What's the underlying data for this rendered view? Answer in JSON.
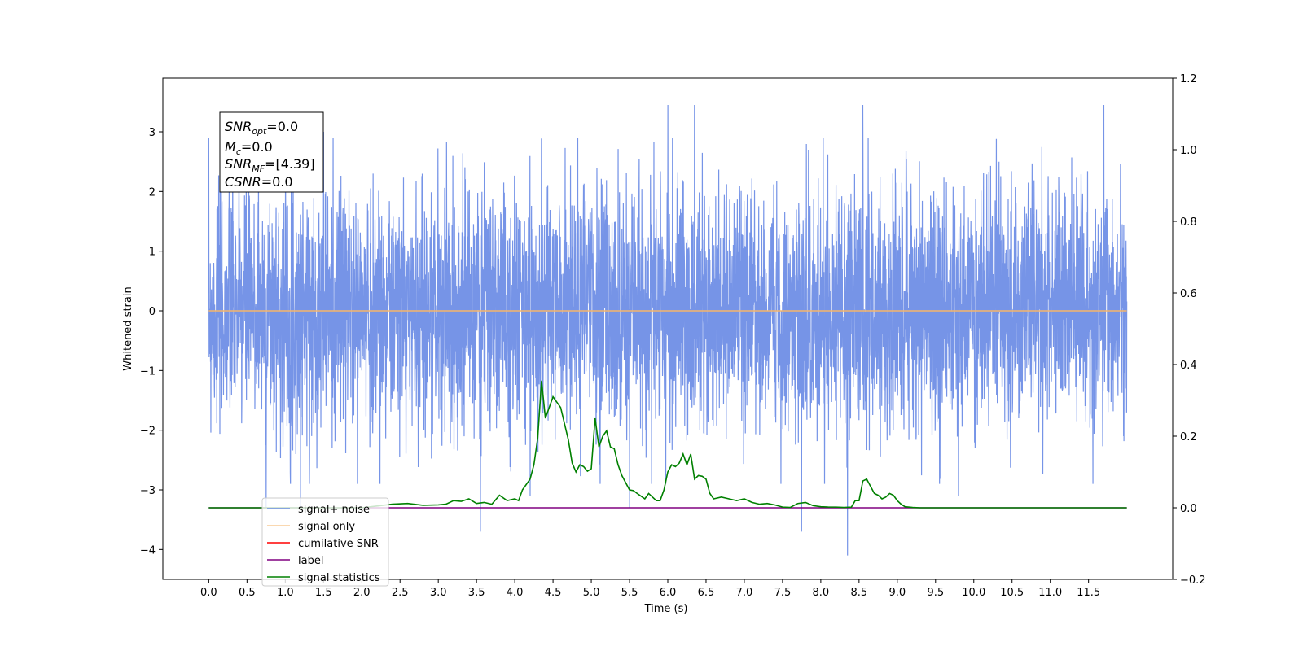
{
  "chart_data": {
    "type": "line",
    "title": "",
    "xlabel": "Time (s)",
    "ylabel": "Whitened strain",
    "xlim": [
      -0.6,
      12.6
    ],
    "ylim": [
      -4.5,
      3.9
    ],
    "y2lim": [
      -0.2,
      1.2
    ],
    "x_ticks": [
      "0.0",
      "0.5",
      "1.0",
      "1.5",
      "2.0",
      "2.5",
      "3.0",
      "3.5",
      "4.0",
      "4.5",
      "5.0",
      "5.5",
      "6.0",
      "6.5",
      "7.0",
      "7.5",
      "8.0",
      "8.5",
      "9.0",
      "9.5",
      "10.0",
      "10.5",
      "11.0",
      "11.5"
    ],
    "y_ticks": [
      "3",
      "2",
      "1",
      "0",
      "−1",
      "−2",
      "−3",
      "−4"
    ],
    "y2_ticks": [
      "1.2",
      "1.0",
      "0.8",
      "0.6",
      "0.4",
      "0.2",
      "0.0",
      "−0.2"
    ],
    "grid": false,
    "legend_position": "lower-left",
    "annotation": {
      "snr_opt": "=0.0",
      "mc": "=0.0",
      "snr_mf": "=[4.39]",
      "csnr": "=0.0"
    },
    "series": [
      {
        "name": "signal+ noise",
        "color": "#6f8ee6",
        "axis": "left",
        "note": "dense white noise between about -2.5 and 2.5 over 0–12 s",
        "x_range": [
          0,
          12
        ],
        "peaks": [
          [
            0.65,
            2.75
          ],
          [
            1.2,
            3.0
          ],
          [
            1.5,
            3.0
          ],
          [
            6.0,
            3.45
          ],
          [
            6.35,
            3.45
          ],
          [
            8.55,
            3.45
          ],
          [
            11.7,
            3.45
          ]
        ],
        "dips": [
          [
            0.75,
            -3.3
          ],
          [
            1.2,
            -3.3
          ],
          [
            3.55,
            -3.7
          ],
          [
            4.2,
            -3.1
          ],
          [
            5.5,
            -3.3
          ],
          [
            7.75,
            -3.7
          ],
          [
            8.35,
            -4.1
          ],
          [
            9.8,
            -3.1
          ]
        ]
      },
      {
        "name": "signal only",
        "color": "#f5b56a",
        "axis": "left",
        "x": [
          0,
          12
        ],
        "y": [
          0,
          0
        ]
      },
      {
        "name": "cumilative SNR",
        "color": "#ff0000",
        "axis": "right",
        "x": [],
        "y": []
      },
      {
        "name": "label",
        "color": "#800080",
        "axis": "right",
        "x": [
          0,
          12
        ],
        "y": [
          0,
          0
        ]
      },
      {
        "name": "signal statistics",
        "color": "#008000",
        "axis": "right",
        "x": [
          0,
          2.0,
          2.2,
          2.4,
          2.6,
          2.8,
          3.0,
          3.1,
          3.2,
          3.3,
          3.4,
          3.5,
          3.6,
          3.7,
          3.8,
          3.9,
          4.0,
          4.05,
          4.1,
          4.2,
          4.25,
          4.3,
          4.35,
          4.4,
          4.5,
          4.55,
          4.6,
          4.7,
          4.75,
          4.8,
          4.85,
          4.9,
          4.95,
          5.0,
          5.05,
          5.1,
          5.15,
          5.2,
          5.25,
          5.3,
          5.35,
          5.4,
          5.5,
          5.55,
          5.6,
          5.7,
          5.75,
          5.8,
          5.85,
          5.9,
          5.95,
          6.0,
          6.05,
          6.1,
          6.15,
          6.2,
          6.25,
          6.3,
          6.35,
          6.4,
          6.45,
          6.5,
          6.55,
          6.6,
          6.7,
          6.8,
          6.9,
          7.0,
          7.1,
          7.2,
          7.3,
          7.4,
          7.5,
          7.6,
          7.7,
          7.8,
          7.9,
          8.0,
          8.1,
          8.2,
          8.3,
          8.4,
          8.45,
          8.5,
          8.55,
          8.6,
          8.7,
          8.75,
          8.8,
          8.85,
          8.9,
          8.95,
          9.0,
          9.05,
          9.1,
          9.2,
          9.3,
          9.5,
          10.0,
          12.0
        ],
        "y": [
          0,
          0,
          0.005,
          0.01,
          0.012,
          0.007,
          0.008,
          0.01,
          0.02,
          0.018,
          0.025,
          0.012,
          0.015,
          0.01,
          0.035,
          0.02,
          0.025,
          0.02,
          0.05,
          0.08,
          0.12,
          0.195,
          0.355,
          0.25,
          0.31,
          0.295,
          0.28,
          0.19,
          0.125,
          0.1,
          0.12,
          0.115,
          0.102,
          0.109,
          0.25,
          0.17,
          0.2,
          0.215,
          0.17,
          0.165,
          0.12,
          0.09,
          0.05,
          0.048,
          0.04,
          0.025,
          0.04,
          0.03,
          0.02,
          0.02,
          0.05,
          0.1,
          0.12,
          0.115,
          0.125,
          0.15,
          0.12,
          0.15,
          0.08,
          0.09,
          0.088,
          0.08,
          0.04,
          0.025,
          0.03,
          0.025,
          0.02,
          0.025,
          0.015,
          0.01,
          0.012,
          0.008,
          0.002,
          0.001,
          0.012,
          0.015,
          0.006,
          0.003,
          0.002,
          0.002,
          0.001,
          0.002,
          0.02,
          0.02,
          0.075,
          0.08,
          0.04,
          0.035,
          0.025,
          0.03,
          0.04,
          0.035,
          0.02,
          0.01,
          0.003,
          0.001,
          0.0,
          0.0,
          0.0,
          0.0
        ]
      }
    ]
  }
}
